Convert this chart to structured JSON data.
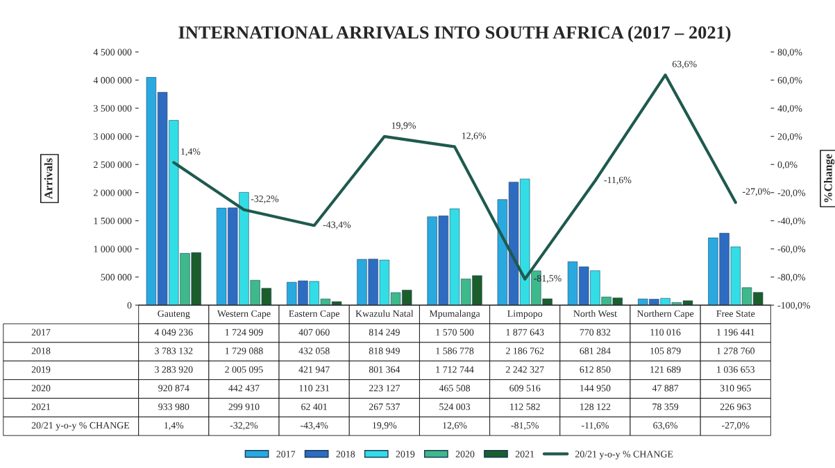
{
  "chart_data": {
    "type": "bar",
    "title": "INTERNATIONAL ARRIVALS INTO SOUTH AFRICA (2017 – 2021)",
    "ylabel": "Arrivals",
    "y2label": "%Change",
    "categories": [
      "Gauteng",
      "Western Cape",
      "Eastern Cape",
      "Kwazulu Natal",
      "Mpumalanga",
      "Limpopo",
      "North West",
      "Northern Cape",
      "Free State"
    ],
    "series": [
      {
        "name": "2017",
        "color": "#29a9e0",
        "values": [
          4049236,
          1724909,
          407060,
          814249,
          1570500,
          1877643,
          770832,
          110016,
          1196441
        ],
        "value_labels": [
          "4 049 236",
          "1 724 909",
          "407 060",
          "814 249",
          "1 570 500",
          "1 877 643",
          "770 832",
          "110 016",
          "1 196 441"
        ]
      },
      {
        "name": "2018",
        "color": "#2e6cc2",
        "values": [
          3783132,
          1729088,
          432058,
          818949,
          1586778,
          2186762,
          681284,
          105879,
          1278760
        ],
        "value_labels": [
          "3 783 132",
          "1 729 088",
          "432 058",
          "818 949",
          "1 586 778",
          "2 186 762",
          "681 284",
          "105 879",
          "1 278 760"
        ]
      },
      {
        "name": "2019",
        "color": "#33dde6",
        "values": [
          3283920,
          2005095,
          421947,
          801364,
          1712744,
          2242327,
          612850,
          121689,
          1036653
        ],
        "value_labels": [
          "3 283 920",
          "2 005 095",
          "421 947",
          "801 364",
          "1 712 744",
          "2 242 327",
          "612 850",
          "121 689",
          "1 036 653"
        ]
      },
      {
        "name": "2020",
        "color": "#3db98b",
        "values": [
          920874,
          442437,
          110231,
          223127,
          465508,
          609516,
          144950,
          47887,
          310965
        ],
        "value_labels": [
          "920 874",
          "442 437",
          "110 231",
          "223 127",
          "465 508",
          "609 516",
          "144 950",
          "47 887",
          "310 965"
        ]
      },
      {
        "name": "2021",
        "color": "#1b5e2c",
        "values": [
          933980,
          299910,
          62401,
          267537,
          524003,
          112582,
          128122,
          78359,
          226963
        ],
        "value_labels": [
          "933 980",
          "299 910",
          "62 401",
          "267 537",
          "524 003",
          "112 582",
          "128 122",
          "78 359",
          "226 963"
        ]
      },
      {
        "name": "20/21 y-o-y % CHANGE",
        "type": "line",
        "axis": "y2",
        "color": "#1e5a4e",
        "values": [
          1.4,
          -32.2,
          -43.4,
          19.9,
          12.6,
          -81.5,
          -11.6,
          63.6,
          -27.0
        ],
        "value_labels": [
          "1,4%",
          "-32,2%",
          "-43,4%",
          "19,9%",
          "12,6%",
          "-81,5%",
          "-11,6%",
          "63,6%",
          "-27,0%"
        ]
      }
    ],
    "ylim": [
      0,
      4500000
    ],
    "yticks": [
      0,
      {
        "value": 500000,
        "label": "500 000"
      },
      {
        "value": 1000000,
        "label": "1 000 000"
      },
      {
        "value": 1500000,
        "label": "1 500 000"
      },
      {
        "value": 2000000,
        "label": "2 000 000"
      },
      {
        "value": 2500000,
        "label": "2 500 000"
      },
      {
        "value": 3000000,
        "label": "3 000 000"
      },
      {
        "value": 3500000,
        "label": "3 500 000"
      },
      {
        "value": 4000000,
        "label": "4 000 000"
      },
      {
        "value": 4500000,
        "label": "4 500 000"
      }
    ],
    "y2lim": [
      -100,
      80
    ],
    "y2ticks": [
      {
        "value": -100,
        "label": "-100,0%"
      },
      {
        "value": -80,
        "label": "-80,0%"
      },
      {
        "value": -60,
        "label": "-60,0%"
      },
      {
        "value": -40,
        "label": "-40,0%"
      },
      {
        "value": -20,
        "label": "-20,0%"
      },
      {
        "value": 0,
        "label": "0,0%"
      },
      {
        "value": 20,
        "label": "20,0%"
      },
      {
        "value": 40,
        "label": "40,0%"
      },
      {
        "value": 60,
        "label": "60,0%"
      },
      {
        "value": 80,
        "label": "80,0%"
      }
    ],
    "legend": "bottom"
  }
}
